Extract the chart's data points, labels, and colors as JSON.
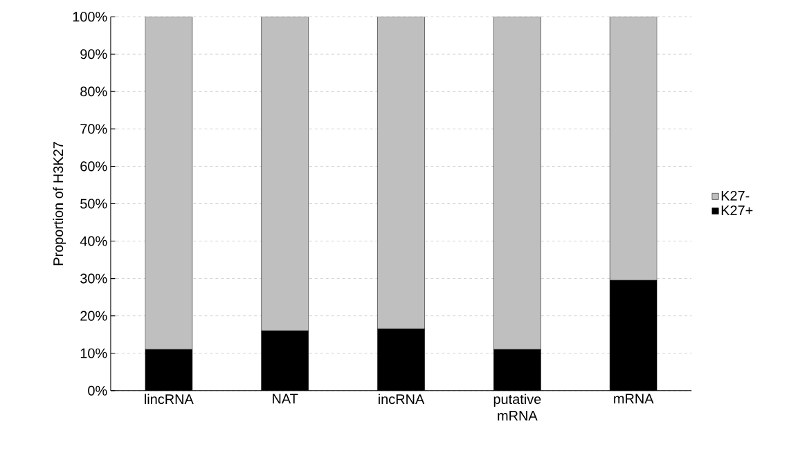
{
  "chart_data": {
    "type": "bar",
    "stacked": true,
    "ylabel": "Proportion of H3K27",
    "categories": [
      "lincRNA",
      "NAT",
      "incRNA",
      "putative mRNA",
      "mRNA"
    ],
    "series": [
      {
        "name": "K27+",
        "color": "#000000",
        "values": [
          11,
          16,
          16.5,
          11,
          29.5
        ]
      },
      {
        "name": "K27-",
        "color": "#bfbfbf",
        "values": [
          89,
          84,
          83.5,
          89,
          70.5
        ]
      }
    ],
    "ylim": [
      0,
      100
    ],
    "yticks": [
      {
        "value": 0,
        "label": "0%"
      },
      {
        "value": 10,
        "label": "10%"
      },
      {
        "value": 20,
        "label": "20%"
      },
      {
        "value": 30,
        "label": "30%"
      },
      {
        "value": 40,
        "label": "40%"
      },
      {
        "value": 50,
        "label": "50%"
      },
      {
        "value": 60,
        "label": "60%"
      },
      {
        "value": 70,
        "label": "70%"
      },
      {
        "value": 80,
        "label": "80%"
      },
      {
        "value": 90,
        "label": "90%"
      },
      {
        "value": 100,
        "label": "100%"
      }
    ],
    "grid": "y",
    "legend": "right"
  }
}
